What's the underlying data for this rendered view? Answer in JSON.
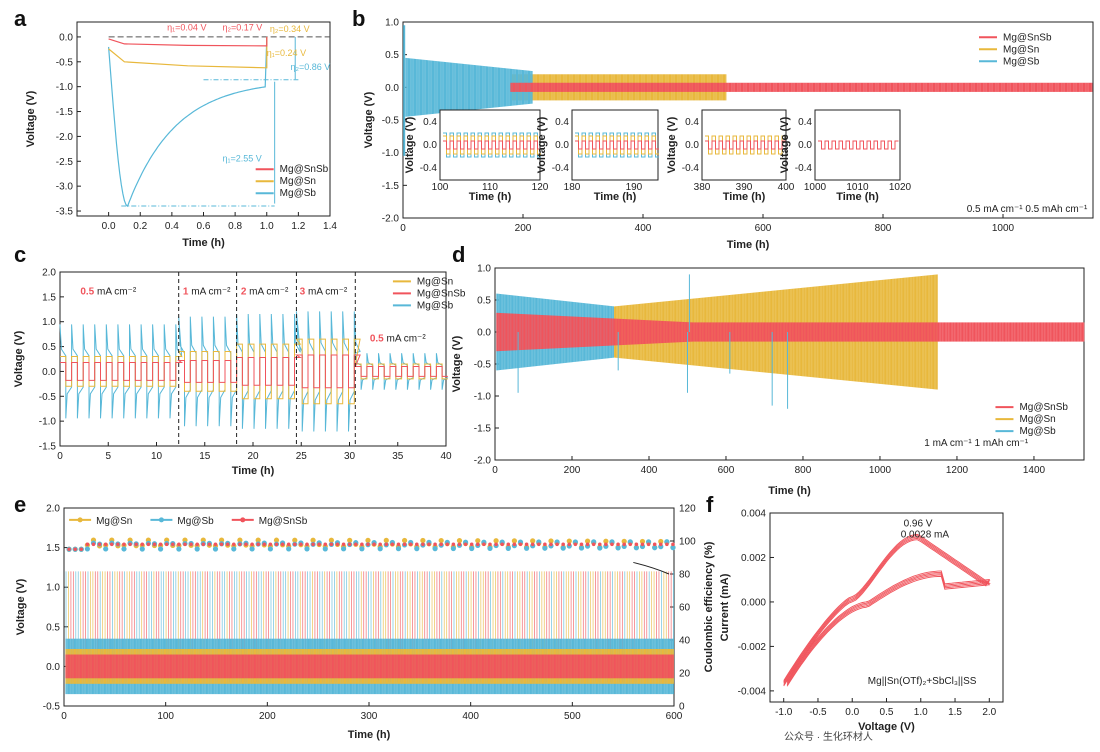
{
  "colors": {
    "snsb": "#f0545c",
    "sn": "#e8b83c",
    "sb": "#58b8d8",
    "axis": "#222222"
  },
  "chart_data": [
    {
      "id": "a",
      "type": "line",
      "panel": "a",
      "xlabel": "Time (h)",
      "ylabel": "Voltage (V)",
      "xlim": [
        -0.2,
        1.4
      ],
      "ylim": [
        -3.6,
        0.3
      ],
      "xticks": [
        "0.0",
        "0.2",
        "0.4",
        "0.6",
        "0.8",
        "1.0",
        "1.2",
        "1.4"
      ],
      "yticks": [
        "0.0",
        "-0.5",
        "-1.0",
        "-1.5",
        "-2.0",
        "-2.5",
        "-3.0",
        "-3.5"
      ],
      "legend": [
        "Mg@SnSb",
        "Mg@Sn",
        "Mg@Sb"
      ],
      "annotations": [
        "η₁=0.04 V",
        "η₂=0.17 V",
        "η₂=0.34 V",
        "η₁=0.24 V",
        "η₂=0.86 V",
        "η₁=2.55 V"
      ],
      "series": [
        {
          "name": "Mg@SnSb",
          "x": [
            0,
            0.1,
            0.5,
            1.0
          ],
          "y": [
            -0.04,
            -0.14,
            -0.17,
            -0.18
          ]
        },
        {
          "name": "Mg@Sn",
          "x": [
            0,
            0.1,
            0.5,
            1.0
          ],
          "y": [
            -0.24,
            -0.5,
            -0.58,
            -0.62
          ]
        },
        {
          "name": "Mg@Sb",
          "x": [
            0,
            0.05,
            0.12,
            0.2,
            0.35,
            0.5,
            0.7,
            0.9,
            1.0
          ],
          "y": [
            -0.2,
            -2.8,
            -3.4,
            -3.1,
            -2.3,
            -1.7,
            -1.25,
            -0.95,
            -0.86
          ]
        }
      ]
    },
    {
      "id": "b",
      "type": "line",
      "panel": "b",
      "xlabel": "Time (h)",
      "ylabel": "Voltage (V)",
      "xlim": [
        0,
        1150
      ],
      "ylim": [
        -2.0,
        1.0
      ],
      "xticks": [
        "0",
        "200",
        "400",
        "600",
        "800",
        "1000"
      ],
      "yticks": [
        "1.0",
        "0.5",
        "0.0",
        "-0.5",
        "-1.0",
        "-1.5",
        "-2.0"
      ],
      "legend": [
        "Mg@SnSb",
        "Mg@Sn",
        "Mg@Sb"
      ],
      "condition": "0.5 mA cm⁻¹ 0.5 mAh cm⁻¹",
      "series": [
        {
          "name": "Mg@Sb",
          "x_end": 215,
          "amplitude": 0.45
        },
        {
          "name": "Mg@Sn",
          "x_end": 540,
          "amplitude": 0.2
        },
        {
          "name": "Mg@SnSb",
          "x_end": 1150,
          "amplitude": 0.07
        }
      ],
      "insets": [
        {
          "xticks": [
            "100",
            "110",
            "120"
          ],
          "yticks": [
            "0.4",
            "0.0",
            "-0.4"
          ],
          "xlabel": "Time (h)",
          "ylabel": "Voltage (V)"
        },
        {
          "xticks": [
            "180",
            "190"
          ],
          "yticks": [
            "0.4",
            "0.0",
            "-0.4"
          ],
          "xlabel": "Time (h)",
          "ylabel": "Voltage (V)"
        },
        {
          "xticks": [
            "380",
            "390",
            "400"
          ],
          "yticks": [
            "0.4",
            "0.0",
            "-0.4"
          ],
          "xlabel": "Time (h)",
          "ylabel": "Voltage (V)"
        },
        {
          "xticks": [
            "1000",
            "1010",
            "1020"
          ],
          "yticks": [
            "0.4",
            "0.0",
            "-0.4"
          ],
          "xlabel": "Time (h)",
          "ylabel": "Voltage (V)"
        }
      ]
    },
    {
      "id": "c",
      "type": "line",
      "panel": "c",
      "xlabel": "Time (h)",
      "ylabel": "Voltage (V)",
      "xlim": [
        0,
        40
      ],
      "ylim": [
        -1.5,
        2.0
      ],
      "xticks": [
        "0",
        "5",
        "10",
        "15",
        "20",
        "25",
        "30",
        "35",
        "40"
      ],
      "yticks": [
        "2.0",
        "1.5",
        "1.0",
        "0.5",
        "0.0",
        "-0.5",
        "-1.0",
        "-1.5"
      ],
      "legend": [
        "Mg@Sn",
        "Mg@SnSb",
        "Mg@Sb"
      ],
      "rates": [
        {
          "value": "0.5",
          "unit": " mA cm⁻²"
        },
        {
          "value": "1",
          "unit": " mA cm⁻²"
        },
        {
          "value": "2",
          "unit": " mA cm⁻²"
        },
        {
          "value": "3",
          "unit": " mA cm⁻²"
        },
        {
          "value": "0.5",
          "unit": " mA cm⁻²"
        }
      ],
      "boundaries": [
        12.3,
        18.3,
        24.5,
        30.6
      ]
    },
    {
      "id": "d",
      "type": "line",
      "panel": "d",
      "xlabel": "Time (h)",
      "ylabel": "Voltage (V)",
      "xlim": [
        0,
        1530
      ],
      "ylim": [
        -2.0,
        1.0
      ],
      "xticks": [
        "0",
        "200",
        "400",
        "600",
        "800",
        "1000",
        "1200",
        "1400"
      ],
      "yticks": [
        "1.0",
        "0.5",
        "0.0",
        "-0.5",
        "-1.0",
        "-1.5",
        "-2.0"
      ],
      "legend": [
        "Mg@SnSb",
        "Mg@Sn",
        "Mg@Sb"
      ],
      "condition": "1 mA cm⁻¹ 1 mAh cm⁻¹",
      "series": [
        {
          "name": "Mg@Sb",
          "x_end": 310,
          "amplitude": 0.45
        },
        {
          "name": "Mg@Sn",
          "x_end": 1150,
          "amplitude": 0.9
        },
        {
          "name": "Mg@SnSb",
          "x_end": 1530,
          "amplitude": 0.15
        }
      ]
    },
    {
      "id": "e",
      "type": "line",
      "panel": "e",
      "xlabel": "Time (h)",
      "ylabel": "Voltage (V)",
      "y2label": "Coulombic efficiency (%)",
      "xlim": [
        0,
        600
      ],
      "ylim": [
        -0.5,
        2.0
      ],
      "y2lim": [
        0,
        120
      ],
      "xticks": [
        "0",
        "100",
        "200",
        "300",
        "400",
        "500",
        "600"
      ],
      "yticks": [
        "2.0",
        "1.5",
        "1.0",
        "0.5",
        "0.0",
        "-0.5"
      ],
      "y2ticks": [
        "120",
        "100",
        "80",
        "60",
        "40",
        "20",
        "0"
      ],
      "legend": [
        "Mg@Sn",
        "Mg@Sb",
        "Mg@SnSb"
      ],
      "ce_level": 98
    },
    {
      "id": "f",
      "type": "line",
      "panel": "f",
      "xlabel": "Voltage (V)",
      "ylabel": "Current (mA)",
      "xlim": [
        -1.2,
        2.2
      ],
      "ylim": [
        -0.0045,
        0.004
      ],
      "xticks": [
        "-1.0",
        "-0.5",
        "0.0",
        "0.5",
        "1.0",
        "1.5",
        "2.0"
      ],
      "yticks": [
        "0.004",
        "0.002",
        "0.000",
        "-0.002",
        "-0.004"
      ],
      "peak_label": [
        "0.96 V",
        "0.0028 mA"
      ],
      "cell_label": "Mg||Sn(OTf)₂+SbCl₃||SS"
    }
  ],
  "watermark": "公众号 · 生化环材人"
}
